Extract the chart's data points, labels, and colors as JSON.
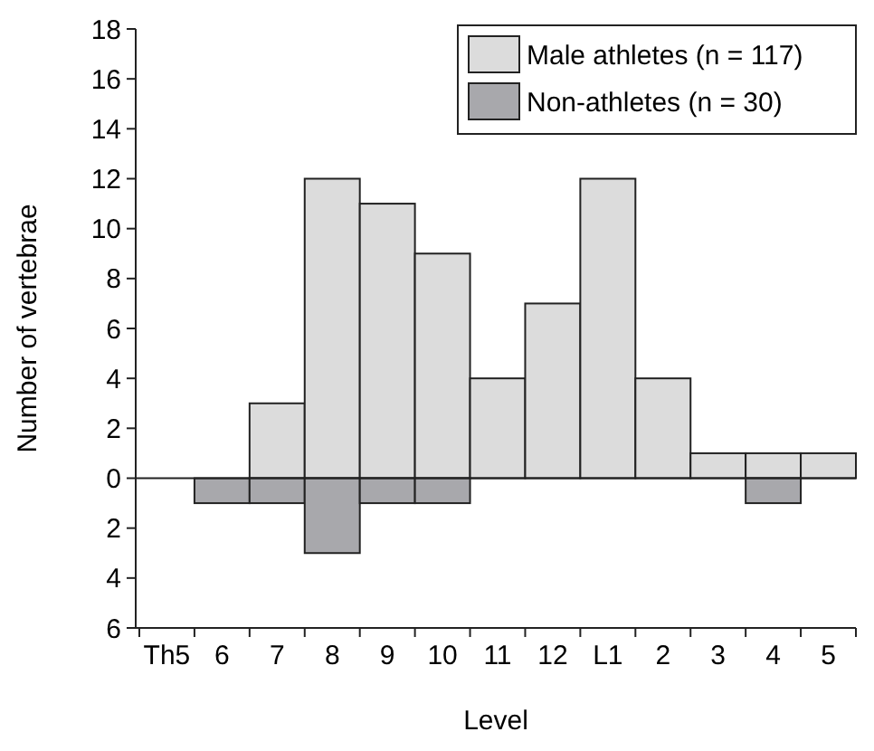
{
  "chart_data": {
    "type": "bar",
    "xlabel": "Level",
    "ylabel": "Number of vertebrae",
    "categories": [
      "Th5",
      "6",
      "7",
      "8",
      "9",
      "10",
      "11",
      "12",
      "L1",
      "2",
      "3",
      "4",
      "5"
    ],
    "series": [
      {
        "name": "Male athletes (n = 117)",
        "color": "#dcdcdc",
        "values": [
          0,
          0,
          3,
          12,
          11,
          9,
          4,
          7,
          12,
          4,
          1,
          1,
          1
        ]
      },
      {
        "name": "Non-athletes (n = 30)",
        "color": "#a8a8ac",
        "values": [
          0,
          -1,
          -1,
          -3,
          -1,
          -1,
          0,
          0,
          0,
          0,
          0,
          -1,
          0
        ]
      }
    ],
    "ylim": [
      -6,
      18
    ],
    "yticks": [
      {
        "value": -6,
        "label": "6"
      },
      {
        "value": -4,
        "label": "4"
      },
      {
        "value": -2,
        "label": "2"
      },
      0,
      2,
      4,
      6,
      8,
      10,
      12,
      14,
      16,
      18
    ],
    "legend": "top right"
  }
}
